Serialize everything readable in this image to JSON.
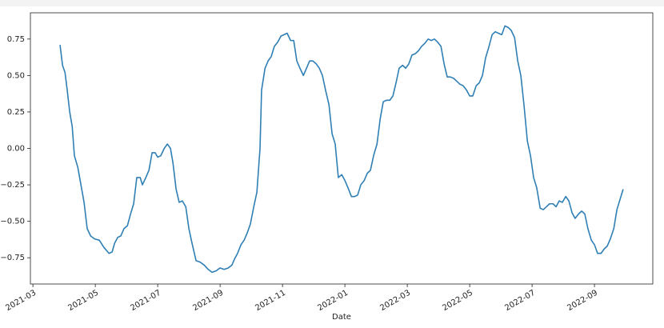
{
  "chart_data": {
    "type": "line",
    "x_label": "Date",
    "x": [
      0.87,
      0.95,
      1.03,
      1.1,
      1.18,
      1.26,
      1.33,
      1.44,
      1.54,
      1.64,
      1.74,
      1.85,
      1.97,
      2.13,
      2.28,
      2.44,
      2.54,
      2.62,
      2.72,
      2.82,
      2.92,
      3.03,
      3.13,
      3.23,
      3.33,
      3.44,
      3.51,
      3.62,
      3.72,
      3.82,
      3.92,
      4.0,
      4.1,
      4.21,
      4.31,
      4.41,
      4.49,
      4.59,
      4.69,
      4.79,
      4.9,
      5.0,
      5.1,
      5.23,
      5.36,
      5.49,
      5.62,
      5.74,
      5.87,
      6.0,
      6.13,
      6.26,
      6.38,
      6.46,
      6.56,
      6.67,
      6.77,
      6.87,
      6.97,
      7.08,
      7.18,
      7.28,
      7.33,
      7.44,
      7.54,
      7.64,
      7.74,
      7.85,
      7.95,
      8.05,
      8.15,
      8.26,
      8.36,
      8.46,
      8.56,
      8.67,
      8.77,
      8.87,
      8.97,
      9.08,
      9.18,
      9.28,
      9.38,
      9.49,
      9.59,
      9.69,
      9.79,
      9.9,
      10.0,
      10.1,
      10.21,
      10.31,
      10.41,
      10.51,
      10.62,
      10.72,
      10.82,
      10.92,
      11.03,
      11.13,
      11.23,
      11.33,
      11.44,
      11.54,
      11.64,
      11.74,
      11.85,
      11.95,
      12.05,
      12.15,
      12.26,
      12.36,
      12.46,
      12.56,
      12.67,
      12.77,
      12.87,
      12.97,
      13.08,
      13.18,
      13.28,
      13.38,
      13.49,
      13.59,
      13.69,
      13.79,
      13.9,
      14.0,
      14.1,
      14.21,
      14.31,
      14.41,
      14.51,
      14.62,
      14.72,
      14.82,
      14.92,
      15.03,
      15.13,
      15.23,
      15.33,
      15.44,
      15.54,
      15.64,
      15.74,
      15.85,
      15.95,
      16.05,
      16.15,
      16.26,
      16.36,
      16.46,
      16.56,
      16.67,
      16.77,
      16.87,
      16.97,
      17.08,
      17.18,
      17.28,
      17.38,
      17.49,
      17.59,
      17.69,
      17.79,
      17.9,
      18.0,
      18.1,
      18.21,
      18.31,
      18.41,
      18.51,
      18.62,
      18.72,
      18.82,
      18.92
    ],
    "values": [
      0.71,
      0.57,
      0.52,
      0.4,
      0.25,
      0.15,
      -0.05,
      -0.13,
      -0.25,
      -0.37,
      -0.55,
      -0.6,
      -0.62,
      -0.63,
      -0.68,
      -0.72,
      -0.71,
      -0.65,
      -0.61,
      -0.6,
      -0.55,
      -0.53,
      -0.45,
      -0.38,
      -0.2,
      -0.2,
      -0.25,
      -0.2,
      -0.15,
      -0.03,
      -0.03,
      -0.06,
      -0.05,
      0.0,
      0.03,
      0.0,
      -0.1,
      -0.28,
      -0.37,
      -0.36,
      -0.4,
      -0.55,
      -0.65,
      -0.77,
      -0.78,
      -0.8,
      -0.83,
      -0.85,
      -0.84,
      -0.82,
      -0.83,
      -0.82,
      -0.8,
      -0.76,
      -0.72,
      -0.66,
      -0.63,
      -0.58,
      -0.52,
      -0.4,
      -0.3,
      0.0,
      0.4,
      0.55,
      0.6,
      0.63,
      0.7,
      0.73,
      0.77,
      0.78,
      0.79,
      0.74,
      0.74,
      0.6,
      0.55,
      0.5,
      0.55,
      0.6,
      0.6,
      0.58,
      0.55,
      0.5,
      0.4,
      0.3,
      0.1,
      0.03,
      -0.2,
      -0.18,
      -0.22,
      -0.27,
      -0.33,
      -0.33,
      -0.32,
      -0.25,
      -0.22,
      -0.17,
      -0.15,
      -0.05,
      0.03,
      0.2,
      0.32,
      0.33,
      0.33,
      0.36,
      0.45,
      0.55,
      0.57,
      0.55,
      0.58,
      0.64,
      0.65,
      0.67,
      0.7,
      0.72,
      0.75,
      0.74,
      0.75,
      0.73,
      0.7,
      0.58,
      0.49,
      0.49,
      0.48,
      0.46,
      0.44,
      0.43,
      0.4,
      0.36,
      0.36,
      0.43,
      0.45,
      0.5,
      0.62,
      0.7,
      0.78,
      0.8,
      0.79,
      0.78,
      0.84,
      0.83,
      0.81,
      0.76,
      0.6,
      0.5,
      0.3,
      0.05,
      -0.05,
      -0.2,
      -0.27,
      -0.41,
      -0.42,
      -0.4,
      -0.38,
      -0.38,
      -0.4,
      -0.36,
      -0.37,
      -0.33,
      -0.36,
      -0.44,
      -0.48,
      -0.45,
      -0.43,
      -0.45,
      -0.55,
      -0.63,
      -0.66,
      -0.72,
      -0.72,
      -0.69,
      -0.67,
      -0.62,
      -0.55,
      -0.42,
      -0.35,
      -0.28
    ],
    "color": "#2f7fb5",
    "xlim": [
      -0.08,
      19.87
    ],
    "xticks": [
      {
        "value": 0,
        "label": "2021-03"
      },
      {
        "value": 2,
        "label": "2021-05"
      },
      {
        "value": 4,
        "label": "2021-07"
      },
      {
        "value": 6,
        "label": "2021-09"
      },
      {
        "value": 8,
        "label": "2021-11"
      },
      {
        "value": 10,
        "label": "2022-01"
      },
      {
        "value": 12,
        "label": "2022-03"
      },
      {
        "value": 14,
        "label": "2022-05"
      },
      {
        "value": 16,
        "label": "2022-07"
      },
      {
        "value": 18,
        "label": "2022-09"
      }
    ],
    "ylim": [
      -0.93,
      0.93
    ],
    "yticks": [
      {
        "value": 0.75,
        "label": "0.75"
      },
      {
        "value": 0.5,
        "label": "0.50"
      },
      {
        "value": 0.25,
        "label": "0.25"
      },
      {
        "value": 0,
        "label": "0.00"
      },
      {
        "value": -0.25,
        "label": "−0.25"
      },
      {
        "value": -0.5,
        "label": "−0.50"
      },
      {
        "value": -0.75,
        "label": "−0.75"
      }
    ],
    "grid": false
  }
}
